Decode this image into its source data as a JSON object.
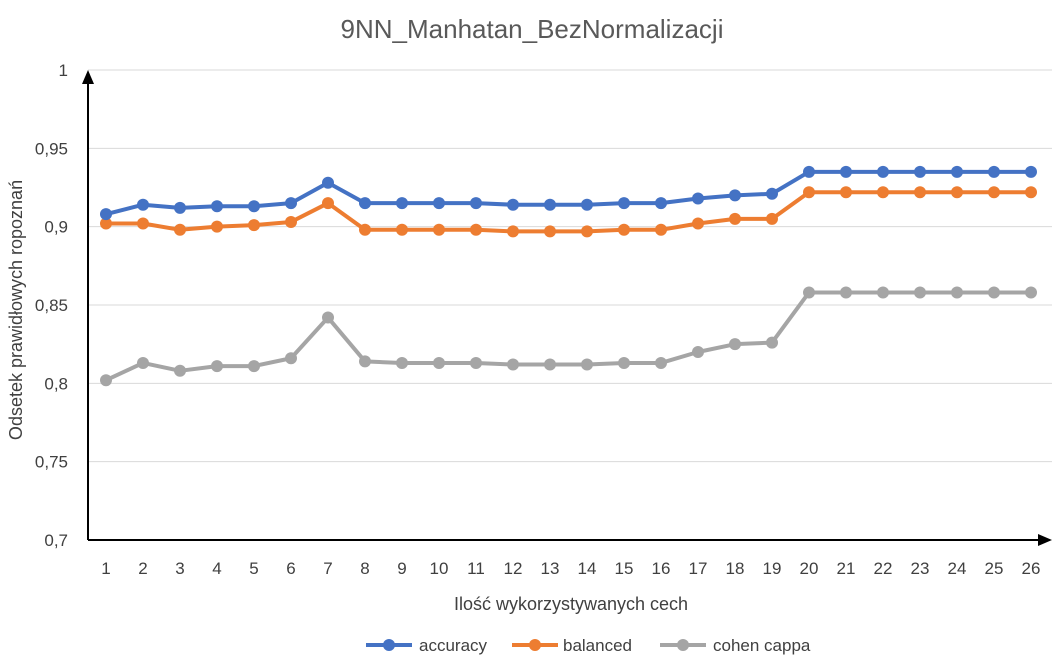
{
  "chart_data": {
    "type": "line",
    "title": "9NN_Manhatan_BezNormalizacji",
    "xlabel": "Ilość wykorzystywanych cech",
    "ylabel": "Odsetek prawidłowych ropoznań",
    "x": [
      1,
      2,
      3,
      4,
      5,
      6,
      7,
      8,
      9,
      10,
      11,
      12,
      13,
      14,
      15,
      16,
      17,
      18,
      19,
      20,
      21,
      22,
      23,
      24,
      25,
      26
    ],
    "ylim": [
      0.7,
      1.0
    ],
    "yticks": [
      "0,7",
      "0,75",
      "0,8",
      "0,85",
      "0,9",
      "0,95",
      "1"
    ],
    "ytick_values": [
      0.7,
      0.75,
      0.8,
      0.85,
      0.9,
      0.95,
      1.0
    ],
    "grid": true,
    "legend_position": "bottom",
    "series": [
      {
        "name": "accuracy",
        "color": "#4472c4",
        "values": [
          0.908,
          0.914,
          0.912,
          0.913,
          0.913,
          0.915,
          0.928,
          0.915,
          0.915,
          0.915,
          0.915,
          0.914,
          0.914,
          0.914,
          0.915,
          0.915,
          0.918,
          0.92,
          0.921,
          0.935,
          0.935,
          0.935,
          0.935,
          0.935,
          0.935,
          0.935
        ]
      },
      {
        "name": "balanced",
        "color": "#ed7d31",
        "values": [
          0.902,
          0.902,
          0.898,
          0.9,
          0.901,
          0.903,
          0.915,
          0.898,
          0.898,
          0.898,
          0.898,
          0.897,
          0.897,
          0.897,
          0.898,
          0.898,
          0.902,
          0.905,
          0.905,
          0.922,
          0.922,
          0.922,
          0.922,
          0.922,
          0.922,
          0.922
        ]
      },
      {
        "name": "cohen cappa",
        "color": "#a5a5a5",
        "values": [
          0.802,
          0.813,
          0.808,
          0.811,
          0.811,
          0.816,
          0.842,
          0.814,
          0.813,
          0.813,
          0.813,
          0.812,
          0.812,
          0.812,
          0.813,
          0.813,
          0.82,
          0.825,
          0.826,
          0.858,
          0.858,
          0.858,
          0.858,
          0.858,
          0.858,
          0.858
        ]
      }
    ]
  }
}
